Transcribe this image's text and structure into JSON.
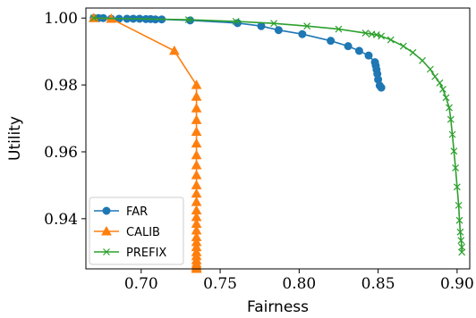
{
  "chart_data": {
    "type": "line",
    "xlabel": "Fairness",
    "ylabel": "Utility",
    "xlim": [
      0.665,
      0.908
    ],
    "ylim": [
      0.925,
      1.003
    ],
    "xticks": [
      0.7,
      0.75,
      0.8,
      0.85,
      0.9
    ],
    "xtick_labels": [
      "0.70",
      "0.75",
      "0.80",
      "0.85",
      "0.90"
    ],
    "yticks": [
      0.94,
      0.96,
      0.98,
      1.0
    ],
    "ytick_labels": [
      "0.94",
      "0.96",
      "0.98",
      "1.00"
    ],
    "grid": false,
    "legend_position": "lower-left",
    "series": [
      {
        "name": "FAR",
        "color": "#1f77b4",
        "marker": "circle",
        "x": [
          0.67,
          0.673,
          0.676,
          0.681,
          0.686,
          0.691,
          0.695,
          0.699,
          0.703,
          0.706,
          0.709,
          0.713,
          0.731,
          0.761,
          0.776,
          0.787,
          0.802,
          0.82,
          0.831,
          0.838,
          0.844,
          0.848,
          0.8485,
          0.849,
          0.8495,
          0.85,
          0.851,
          0.852
        ],
        "y": [
          1.0,
          1.0,
          1.0,
          0.9998,
          0.9998,
          0.9998,
          0.9998,
          0.9998,
          0.9997,
          0.9997,
          0.9996,
          0.9996,
          0.9993,
          0.9985,
          0.9976,
          0.9964,
          0.9952,
          0.9932,
          0.9916,
          0.9902,
          0.9888,
          0.9868,
          0.9858,
          0.9846,
          0.9833,
          0.9816,
          0.9798,
          0.9792
        ]
      },
      {
        "name": "CALIB",
        "color": "#ff7f0e",
        "marker": "triangle",
        "x": [
          0.67,
          0.681,
          0.721,
          0.735,
          0.735,
          0.735,
          0.735,
          0.735,
          0.735,
          0.735,
          0.735,
          0.735,
          0.735,
          0.735,
          0.735,
          0.735,
          0.735,
          0.735,
          0.735,
          0.735,
          0.735,
          0.735,
          0.735,
          0.735,
          0.735,
          0.735,
          0.735,
          0.735,
          0.735
        ],
        "y": [
          1.0,
          0.9998,
          0.9902,
          0.98,
          0.9765,
          0.973,
          0.9695,
          0.966,
          0.9625,
          0.959,
          0.956,
          0.953,
          0.95,
          0.9475,
          0.945,
          0.9425,
          0.9405,
          0.9385,
          0.9365,
          0.9345,
          0.933,
          0.9315,
          0.93,
          0.9288,
          0.9276,
          0.9266,
          0.9259,
          0.9254,
          0.925
        ]
      },
      {
        "name": "PREFIX",
        "color": "#2ca02c",
        "marker": "x",
        "x": [
          0.67,
          0.73,
          0.76,
          0.784,
          0.805,
          0.825,
          0.842,
          0.846,
          0.849,
          0.852,
          0.858,
          0.866,
          0.872,
          0.878,
          0.883,
          0.886,
          0.889,
          0.891,
          0.893,
          0.895,
          0.896,
          0.897,
          0.898,
          0.899,
          0.9,
          0.901,
          0.9015,
          0.902,
          0.9025,
          0.903,
          0.903
        ],
        "y": [
          1.0,
          0.9995,
          0.999,
          0.9984,
          0.9976,
          0.9967,
          0.9955,
          0.9952,
          0.995,
          0.9946,
          0.9935,
          0.9916,
          0.9897,
          0.9873,
          0.9847,
          0.9825,
          0.9806,
          0.9787,
          0.9762,
          0.9732,
          0.9697,
          0.9652,
          0.9602,
          0.9552,
          0.9495,
          0.944,
          0.9395,
          0.936,
          0.9335,
          0.9315,
          0.93
        ]
      }
    ]
  }
}
